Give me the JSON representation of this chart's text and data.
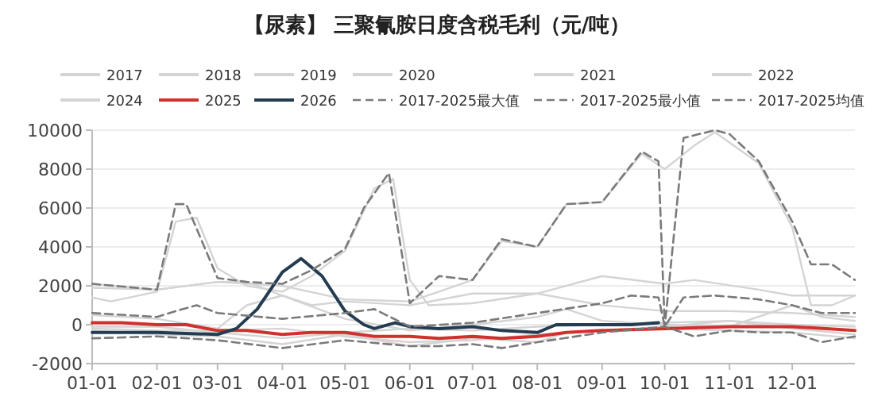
{
  "chart_data": {
    "type": "line",
    "title": "【尿素】 三聚氰胺日度含税毛利（元/吨）",
    "xlim": [
      "--01-01",
      "--12-31"
    ],
    "xticks": [
      {
        "value": "--01-01",
        "label": "01-01"
      },
      {
        "value": "--02-01",
        "label": "02-01"
      },
      {
        "value": "--03-01",
        "label": "03-01"
      },
      {
        "value": "--04-01",
        "label": "04-01"
      },
      {
        "value": "--05-01",
        "label": "05-01"
      },
      {
        "value": "--06-01",
        "label": "06-01"
      },
      {
        "value": "--07-01",
        "label": "07-01"
      },
      {
        "value": "--08-01",
        "label": "08-01"
      },
      {
        "value": "--09-01",
        "label": "09-01"
      },
      {
        "value": "--10-01",
        "label": "10-01"
      },
      {
        "value": "--11-01",
        "label": "11-01"
      },
      {
        "value": "--12-01",
        "label": "12-01"
      }
    ],
    "ylim": [
      -2000,
      10000
    ],
    "yticks": [
      -2000,
      0,
      2000,
      4000,
      6000,
      8000,
      10000
    ],
    "grid": "y",
    "legend": "top",
    "marker": "none",
    "series": [
      {
        "name": "2017",
        "color": "#d4d4d4",
        "line_style": "solid",
        "x": [
          "--01-01",
          "--02-01",
          "--03-01",
          "--04-01",
          "--05-01",
          "--06-01",
          "--07-01",
          "--08-01",
          "--09-01",
          "--10-01",
          "--11-01",
          "--12-01",
          "--12-31"
        ],
        "values": [
          -100,
          -100,
          -400,
          -700,
          -400,
          -200,
          -300,
          -100,
          0,
          100,
          200,
          0,
          -100
        ]
      },
      {
        "name": "2018",
        "color": "#d4d4d4",
        "line_style": "solid",
        "x": [
          "--01-01",
          "--02-01",
          "--03-01",
          "--04-01",
          "--05-01",
          "--06-01",
          "--07-01",
          "--08-01",
          "--09-01",
          "--10-01",
          "--11-01",
          "--12-01",
          "--12-31"
        ],
        "values": [
          -200,
          -300,
          -300,
          -200,
          -600,
          -900,
          -800,
          -500,
          -300,
          -100,
          200,
          -200,
          -500
        ]
      },
      {
        "name": "2019",
        "color": "#d4d4d4",
        "line_style": "solid",
        "x": [
          "--01-01",
          "--02-01",
          "--03-01",
          "--03-15",
          "--04-01",
          "--05-01",
          "--06-01",
          "--07-01",
          "--08-01",
          "--08-15",
          "--09-01",
          "--10-01",
          "--11-01",
          "--12-01",
          "--12-15",
          "--12-31"
        ],
        "values": [
          500,
          300,
          -200,
          1000,
          1500,
          300,
          -300,
          0,
          400,
          800,
          200,
          0,
          -100,
          1000,
          400,
          200
        ]
      },
      {
        "name": "2020",
        "color": "#d4d4d4",
        "line_style": "solid",
        "x": [
          "--01-01",
          "--02-01",
          "--03-01",
          "--03-15",
          "--04-01",
          "--04-15",
          "--05-01",
          "--06-01",
          "--07-01",
          "--08-01",
          "--09-01",
          "--10-01",
          "--11-01",
          "--12-01",
          "--12-31"
        ],
        "values": [
          1900,
          1800,
          2200,
          2200,
          1500,
          1000,
          1200,
          1000,
          1600,
          1600,
          1000,
          700,
          700,
          600,
          400
        ]
      },
      {
        "name": "2021",
        "color": "#d4d4d4",
        "line_style": "solid",
        "x": [
          "--01-01",
          "--02-01",
          "--03-01",
          "--04-01",
          "--05-01",
          "--06-01",
          "--06-15",
          "--07-01",
          "--07-15",
          "--08-01",
          "--08-15",
          "--09-01",
          "--09-20",
          "--10-01",
          "--10-15",
          "--10-25",
          "--11-15",
          "--12-01",
          "--12-10",
          "--12-20",
          "--12-31"
        ],
        "values": [
          2100,
          1800,
          2200,
          2000,
          1300,
          1200,
          1700,
          2300,
          4300,
          4000,
          6200,
          6300,
          8800,
          8000,
          9200,
          9900,
          8300,
          5000,
          1000,
          1000,
          1500
        ]
      },
      {
        "name": "2022",
        "color": "#d4d4d4",
        "line_style": "solid",
        "x": [
          "--01-01",
          "--01-10",
          "--02-01",
          "--02-10",
          "--02-20",
          "--03-01",
          "--03-15",
          "--04-01",
          "--04-15",
          "--05-01",
          "--05-15",
          "--05-24",
          "--06-01",
          "--06-10",
          "--07-01",
          "--08-01",
          "--09-01",
          "--10-01",
          "--10-15",
          "--11-15",
          "--12-01",
          "--12-31"
        ],
        "values": [
          1400,
          1200,
          1700,
          5300,
          5500,
          2900,
          2000,
          1700,
          2500,
          3800,
          7000,
          7500,
          2300,
          1000,
          1100,
          1600,
          2500,
          2100,
          2300,
          1800,
          1500,
          1500
        ]
      },
      {
        "name": "2024",
        "color": "#d4d4d4",
        "line_style": "solid",
        "x": [
          "--01-01",
          "--02-01",
          "--03-01",
          "--04-01",
          "--05-01",
          "--06-01",
          "--07-01",
          "--08-01",
          "--08-15",
          "--09-01",
          "--10-01",
          "--11-01",
          "--12-01",
          "--12-31"
        ],
        "values": [
          -300,
          -500,
          -600,
          -1000,
          -500,
          -1100,
          -700,
          -900,
          -400,
          -300,
          -200,
          -300,
          -400,
          -700
        ]
      },
      {
        "name": "2025",
        "color": "#d0312d",
        "line_style": "solid",
        "x": [
          "--01-01",
          "--01-15",
          "--02-01",
          "--02-15",
          "--03-01",
          "--03-15",
          "--04-01",
          "--04-15",
          "--05-01",
          "--05-15",
          "--06-01",
          "--06-15",
          "--07-01",
          "--07-15",
          "--08-01",
          "--08-15",
          "--09-01",
          "--10-01",
          "--11-01",
          "--12-01",
          "--12-31"
        ],
        "values": [
          100,
          100,
          0,
          0,
          -300,
          -300,
          -500,
          -400,
          -400,
          -600,
          -600,
          -700,
          -600,
          -700,
          -600,
          -400,
          -300,
          -200,
          -100,
          -100,
          -300
        ]
      },
      {
        "name": "2026",
        "color": "#243c52",
        "line_style": "solid",
        "x": [
          "--01-01",
          "--02-01",
          "--03-01",
          "--03-10",
          "--03-20",
          "--04-01",
          "--04-10",
          "--04-20",
          "--05-01",
          "--05-10",
          "--05-15",
          "--05-25",
          "--06-01",
          "--06-15",
          "--07-01",
          "--07-15",
          "--08-01",
          "--08-10",
          "--08-20",
          "--09-01",
          "--09-15",
          "--09-28"
        ],
        "values": [
          -400,
          -400,
          -500,
          -200,
          800,
          2700,
          3400,
          2500,
          700,
          0,
          -200,
          100,
          -100,
          -200,
          -100,
          -300,
          -400,
          0,
          0,
          0,
          0,
          100
        ]
      },
      {
        "name": "2017-2025最大值",
        "color": "#7a7a7a",
        "line_style": "dashed",
        "x": [
          "--01-01",
          "--02-01",
          "--02-10",
          "--02-15",
          "--03-01",
          "--03-15",
          "--04-01",
          "--04-15",
          "--05-01",
          "--05-10",
          "--05-22",
          "--06-01",
          "--06-15",
          "--07-01",
          "--07-15",
          "--08-01",
          "--08-15",
          "--09-01",
          "--09-20",
          "--09-28",
          "--10-01",
          "--10-10",
          "--10-25",
          "--11-01",
          "--11-15",
          "--12-01",
          "--12-10",
          "--12-20",
          "--12-31"
        ],
        "values": [
          2100,
          1800,
          6200,
          6200,
          2400,
          2200,
          2100,
          2800,
          3900,
          6000,
          7800,
          1100,
          2500,
          2300,
          4400,
          4000,
          6200,
          6300,
          8900,
          8400,
          -100,
          9600,
          10000,
          9800,
          8400,
          5300,
          3100,
          3100,
          2300
        ]
      },
      {
        "name": "2017-2025最小值",
        "color": "#7a7a7a",
        "line_style": "dashed",
        "x": [
          "--01-01",
          "--02-01",
          "--03-01",
          "--04-01",
          "--05-01",
          "--06-01",
          "--06-15",
          "--07-01",
          "--07-15",
          "--08-01",
          "--09-01",
          "--10-01",
          "--10-15",
          "--11-01",
          "--11-15",
          "--12-01",
          "--12-15",
          "--12-31"
        ],
        "values": [
          -700,
          -600,
          -800,
          -1200,
          -800,
          -1100,
          -1100,
          -1000,
          -1200,
          -900,
          -400,
          -100,
          -600,
          -300,
          -400,
          -400,
          -900,
          -600
        ]
      },
      {
        "name": "2017-2025均值",
        "color": "#7a7a7a",
        "line_style": "dashed",
        "x": [
          "--01-01",
          "--02-01",
          "--02-10",
          "--02-20",
          "--03-01",
          "--04-01",
          "--05-01",
          "--05-15",
          "--06-01",
          "--07-01",
          "--08-01",
          "--09-01",
          "--09-15",
          "--09-28",
          "--10-01",
          "--10-10",
          "--10-25",
          "--11-15",
          "--12-01",
          "--12-15",
          "--12-31"
        ],
        "values": [
          600,
          400,
          700,
          1000,
          600,
          300,
          600,
          800,
          -100,
          100,
          600,
          1100,
          1500,
          1400,
          -100,
          1400,
          1500,
          1300,
          1000,
          600,
          600
        ]
      }
    ]
  }
}
